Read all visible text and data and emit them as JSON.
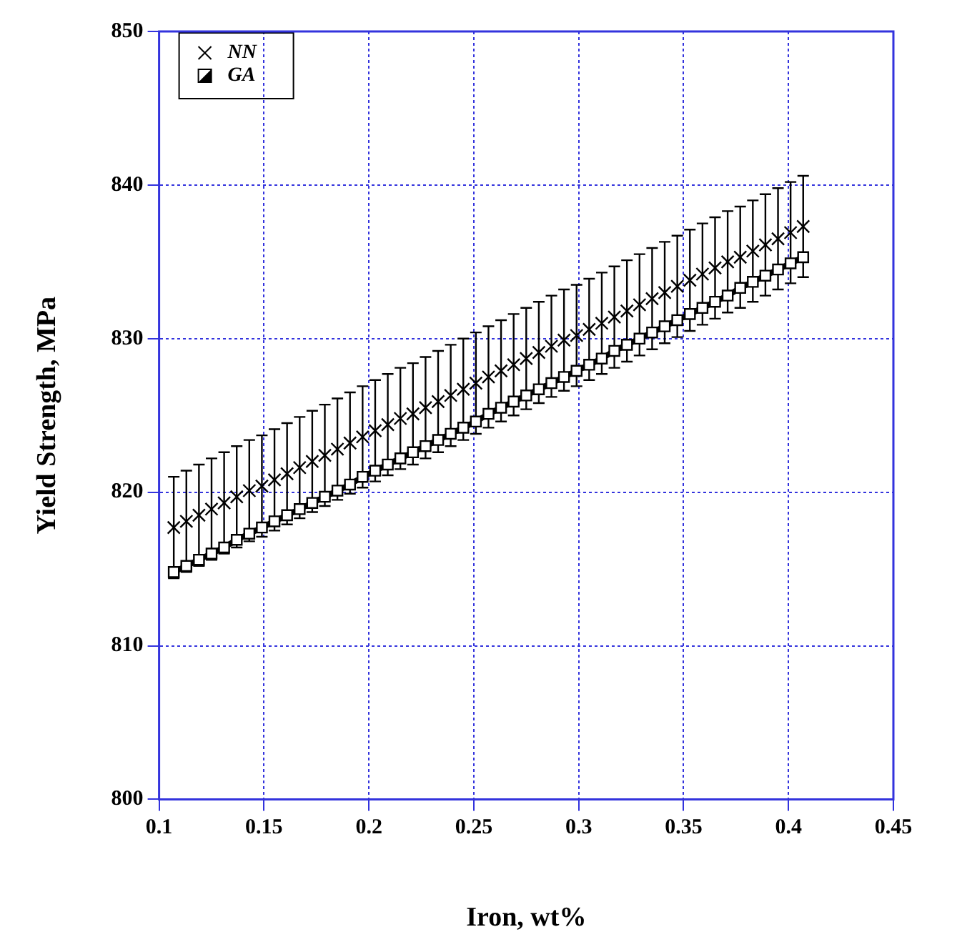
{
  "chart_data": {
    "type": "line",
    "xlabel": "Iron, wt%",
    "ylabel": "Yield Strength, MPa",
    "x": [
      0.107,
      0.113,
      0.119,
      0.125,
      0.131,
      0.137,
      0.143,
      0.149,
      0.155,
      0.161,
      0.167,
      0.173,
      0.179,
      0.185,
      0.191,
      0.197,
      0.203,
      0.209,
      0.215,
      0.221,
      0.227,
      0.233,
      0.239,
      0.245,
      0.251,
      0.257,
      0.263,
      0.269,
      0.275,
      0.281,
      0.287,
      0.293,
      0.299,
      0.305,
      0.311,
      0.317,
      0.323,
      0.329,
      0.335,
      0.341,
      0.347,
      0.353,
      0.359,
      0.365,
      0.371,
      0.377,
      0.383,
      0.389,
      0.395,
      0.401,
      0.407
    ],
    "series": [
      {
        "name": "NN",
        "type": "scatter",
        "marker": "cross",
        "color": "#000000",
        "values": [
          817.7,
          818.1,
          818.5,
          818.9,
          819.3,
          819.7,
          820.1,
          820.4,
          820.8,
          821.2,
          821.6,
          822.0,
          822.4,
          822.8,
          823.2,
          823.6,
          824.0,
          824.4,
          824.8,
          825.1,
          825.5,
          825.9,
          826.3,
          826.7,
          827.1,
          827.5,
          827.9,
          828.3,
          828.7,
          829.1,
          829.5,
          829.9,
          830.2,
          830.6,
          831.0,
          831.4,
          831.8,
          832.2,
          832.6,
          833.0,
          833.4,
          833.8,
          834.2,
          834.6,
          835.0,
          835.3,
          835.7,
          836.1,
          836.5,
          836.9,
          837.3
        ],
        "errors": [
          3.3,
          3.3,
          3.3,
          3.3,
          3.3,
          3.3,
          3.3,
          3.3,
          3.3,
          3.3,
          3.3,
          3.3,
          3.3,
          3.3,
          3.3,
          3.3,
          3.3,
          3.3,
          3.3,
          3.3,
          3.3,
          3.3,
          3.3,
          3.3,
          3.3,
          3.3,
          3.3,
          3.3,
          3.3,
          3.3,
          3.3,
          3.3,
          3.3,
          3.3,
          3.3,
          3.3,
          3.3,
          3.3,
          3.3,
          3.3,
          3.3,
          3.3,
          3.3,
          3.3,
          3.3,
          3.3,
          3.3,
          3.3,
          3.3,
          3.3,
          3.3
        ]
      },
      {
        "name": "GA",
        "marker": "square",
        "color": "#000000",
        "values": [
          814.8,
          815.2,
          815.6,
          816.0,
          816.4,
          816.9,
          817.3,
          817.7,
          818.1,
          818.5,
          818.9,
          819.3,
          819.7,
          820.1,
          820.5,
          821.0,
          821.4,
          821.8,
          822.2,
          822.6,
          823.0,
          823.4,
          823.8,
          824.2,
          824.6,
          825.1,
          825.5,
          825.9,
          826.3,
          826.7,
          827.1,
          827.5,
          827.9,
          828.3,
          828.7,
          829.2,
          829.6,
          830.0,
          830.4,
          830.8,
          831.2,
          831.6,
          832.0,
          832.4,
          832.8,
          833.3,
          833.7,
          834.1,
          834.5,
          834.9,
          835.3
        ]
      }
    ],
    "xlim": [
      0.1,
      0.45
    ],
    "xticks": [
      0.1,
      0.15,
      0.2,
      0.25,
      0.3,
      0.35,
      0.4,
      0.45
    ],
    "ylim": [
      800,
      850
    ],
    "yticks": [
      800,
      810,
      820,
      830,
      840,
      850
    ],
    "grid": true,
    "legend": "top left"
  }
}
